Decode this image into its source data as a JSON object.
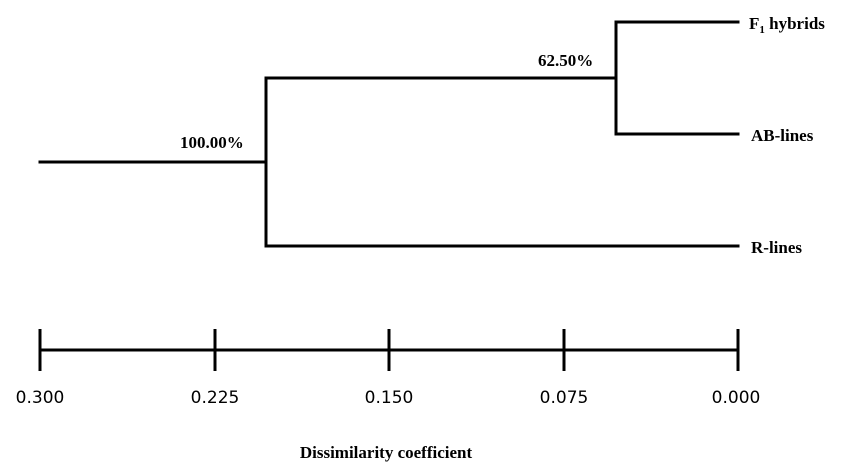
{
  "diagram": {
    "type": "dendrogram",
    "leaves": [
      {
        "id": "f1",
        "label_main": "F",
        "label_sub": "1",
        "label_rest": " hybrids"
      },
      {
        "id": "ab",
        "label": "AB-lines"
      },
      {
        "id": "r",
        "label": "R-lines"
      }
    ],
    "nodes": [
      {
        "id": "n1",
        "children": [
          "f1",
          "ab"
        ],
        "height": 0.05,
        "support": "62.50%"
      },
      {
        "id": "n2",
        "children": [
          "n1",
          "r"
        ],
        "height": 0.205,
        "support": "100.00%"
      }
    ],
    "root_height": 0.3,
    "axis": {
      "title": "Dissimilarity coefficient",
      "ticks": [
        "0.300",
        "0.225",
        "0.150",
        "0.075",
        "0.000"
      ],
      "tick_values": [
        0.3,
        0.225,
        0.15,
        0.075,
        0.0
      ],
      "range": [
        0.3,
        0.0
      ]
    }
  }
}
